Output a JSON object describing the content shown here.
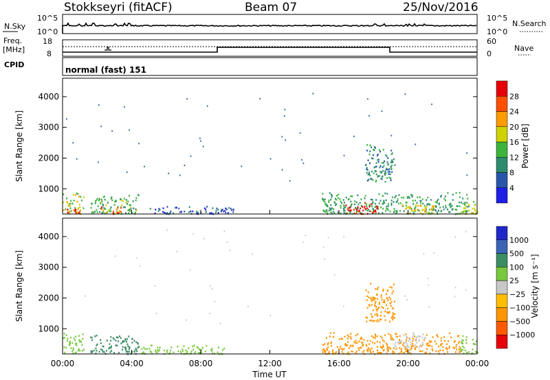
{
  "header": {
    "title": "Stokkseyri (fitACF)",
    "beam": "Beam 07",
    "date": "25/Nov/2016"
  },
  "panels": {
    "nsky": {
      "left_label": "N.Sky",
      "right_label": "N.Search",
      "left_ticks": [
        "10^5",
        "10^0"
      ],
      "right_ticks": [
        "10^5",
        "10^0"
      ]
    },
    "freq": {
      "left_label_1": "Freq.",
      "left_label_2": "[MHz]",
      "right_label": "Nave",
      "left_ticks": [
        "18",
        "8"
      ],
      "right_ticks": [
        "60",
        "0"
      ]
    },
    "cpid": {
      "label": "CPID",
      "mode": "normal (fast) 151"
    }
  },
  "colors": {
    "power_scale": [
      "#1e1ee6",
      "#2a56aa",
      "#2e8b6e",
      "#3cb43c",
      "#cdd200",
      "#ff9c00",
      "#ff5000",
      "#e6000a"
    ],
    "velocity_scale": [
      "#e6000a",
      "#ff5a00",
      "#ff9600",
      "#ffbe00",
      "#c8c8c8",
      "#78c83c",
      "#3c8c64",
      "#3c64b4",
      "#1e28c8"
    ]
  },
  "chart_data": [
    {
      "type": "heatmap",
      "name": "power",
      "ylabel": "Slant Range [km]",
      "y_ticks": [
        1000,
        2000,
        3000,
        4000
      ],
      "ylim": [
        180,
        4600
      ],
      "colorbar_label": "Power [dB]",
      "colorbar_ticks": [
        "28",
        "24",
        "20",
        "16",
        "12",
        "8",
        "4"
      ],
      "clim": [
        0,
        32
      ],
      "regions": [
        {
          "t0": 0.0,
          "t1": 1.2,
          "r0": 200,
          "r1": 900,
          "v": 18
        },
        {
          "t0": 0.2,
          "t1": 1.0,
          "r0": 200,
          "r1": 400,
          "v": 27
        },
        {
          "t0": 1.6,
          "t1": 4.4,
          "r0": 200,
          "r1": 850,
          "v": 13
        },
        {
          "t0": 2.2,
          "t1": 3.4,
          "r0": 200,
          "r1": 450,
          "v": 25
        },
        {
          "t0": 5.0,
          "t1": 10.0,
          "r0": 200,
          "r1": 450,
          "v": 6
        },
        {
          "t0": 15.0,
          "t1": 23.5,
          "r0": 200,
          "r1": 900,
          "v": 12
        },
        {
          "t0": 16.2,
          "t1": 18.2,
          "r0": 200,
          "r1": 600,
          "v": 29
        },
        {
          "t0": 19.5,
          "t1": 21.5,
          "r0": 200,
          "r1": 550,
          "v": 20
        },
        {
          "t0": 17.5,
          "t1": 19.2,
          "r0": 1250,
          "r1": 2500,
          "v": 10
        },
        {
          "t0": 23.0,
          "t1": 24.0,
          "r0": 200,
          "r1": 700,
          "v": 18
        }
      ]
    },
    {
      "type": "heatmap",
      "name": "velocity",
      "xlabel": "Time UT",
      "ylabel": "Slant Range [km]",
      "x_ticks": [
        "00:00",
        "04:00",
        "08:00",
        "12:00",
        "16:00",
        "20:00",
        "00:00"
      ],
      "xlim": [
        0,
        24
      ],
      "y_ticks": [
        1000,
        2000,
        3000,
        4000
      ],
      "ylim": [
        180,
        4600
      ],
      "colorbar_label": "Velocity [m s⁻¹]",
      "colorbar_ticks": [
        "1000",
        "500",
        "100",
        "25",
        "−25",
        "−100",
        "−500",
        "−1000"
      ],
      "regions": [
        {
          "t0": 0.0,
          "t1": 1.2,
          "r0": 200,
          "r1": 900,
          "v": 80
        },
        {
          "t0": 1.6,
          "t1": 4.4,
          "r0": 200,
          "r1": 850,
          "v": 150
        },
        {
          "t0": 4.4,
          "t1": 9.5,
          "r0": 200,
          "r1": 500,
          "v": 40
        },
        {
          "t0": 15.0,
          "t1": 23.0,
          "r0": 200,
          "r1": 900,
          "v": -150
        },
        {
          "t0": 19.0,
          "t1": 21.0,
          "r0": 400,
          "r1": 900,
          "v": 0
        },
        {
          "t0": 17.5,
          "t1": 19.2,
          "r0": 1250,
          "r1": 2500,
          "v": -200
        },
        {
          "t0": 23.0,
          "t1": 24.0,
          "r0": 200,
          "r1": 800,
          "v": 60
        }
      ]
    }
  ],
  "axes": {
    "xlabel": "Time UT",
    "x_ticks": [
      "00:00",
      "04:00",
      "08:00",
      "12:00",
      "16:00",
      "20:00",
      "00:00"
    ]
  }
}
